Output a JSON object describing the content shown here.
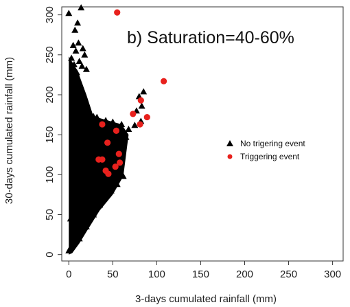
{
  "chart_data": {
    "type": "scatter",
    "title": "b)  Saturation=40-60%",
    "xlabel": "3-days cumulated rainfall (mm)",
    "ylabel": "30-days cumulated rainfall (mm)",
    "xlim": [
      -8,
      312
    ],
    "ylim": [
      -8,
      310
    ],
    "xticks": [
      0,
      50,
      100,
      150,
      200,
      250,
      300
    ],
    "yticks": [
      0,
      50,
      100,
      150,
      200,
      250,
      300
    ],
    "grid": false,
    "legend_position": "right",
    "series": [
      {
        "name": "No trigering event",
        "marker": "triangle",
        "color": "#000000",
        "points": [
          [
            0,
            302
          ],
          [
            14,
            309
          ],
          [
            10,
            290
          ],
          [
            7,
            281
          ],
          [
            11,
            265
          ],
          [
            5,
            262
          ],
          [
            8,
            255
          ],
          [
            16,
            258
          ],
          [
            12,
            242
          ],
          [
            18,
            250
          ],
          [
            3,
            246
          ],
          [
            20,
            232
          ],
          [
            6,
            238
          ],
          [
            9,
            228
          ],
          [
            15,
            236
          ],
          [
            85,
            204
          ],
          [
            80,
            198
          ],
          [
            83,
            186
          ],
          [
            77,
            180
          ],
          [
            82,
            167
          ],
          [
            75,
            162
          ],
          [
            28,
            173
          ],
          [
            32,
            172
          ],
          [
            42,
            168
          ],
          [
            50,
            166
          ],
          [
            60,
            163
          ],
          [
            68,
            157
          ],
          [
            58,
            151
          ],
          [
            65,
            147
          ],
          [
            50,
            140
          ],
          [
            53,
            130
          ],
          [
            57,
            120
          ],
          [
            59,
            110
          ],
          [
            62,
            98
          ],
          [
            55,
            88
          ],
          [
            48,
            80
          ],
          [
            40,
            70
          ],
          [
            35,
            62
          ],
          [
            28,
            50
          ],
          [
            20,
            35
          ],
          [
            12,
            20
          ],
          [
            22,
            128
          ],
          [
            30,
            112
          ],
          [
            18,
            95
          ],
          [
            10,
            80
          ],
          [
            5,
            60
          ],
          [
            2,
            45
          ],
          [
            8,
            30
          ],
          [
            4,
            15
          ],
          [
            0,
            5
          ]
        ]
      },
      {
        "name": "Triggering event",
        "marker": "circle",
        "color": "#e8211d",
        "points": [
          [
            55,
            303
          ],
          [
            108,
            217
          ],
          [
            82,
            193
          ],
          [
            89,
            172
          ],
          [
            73,
            176
          ],
          [
            81,
            163
          ],
          [
            54,
            155
          ],
          [
            38,
            163
          ],
          [
            44,
            140
          ],
          [
            57,
            126
          ],
          [
            38,
            119
          ],
          [
            34,
            119
          ],
          [
            58,
            115
          ],
          [
            53,
            110
          ],
          [
            42,
            105
          ],
          [
            45,
            101
          ]
        ]
      }
    ]
  }
}
